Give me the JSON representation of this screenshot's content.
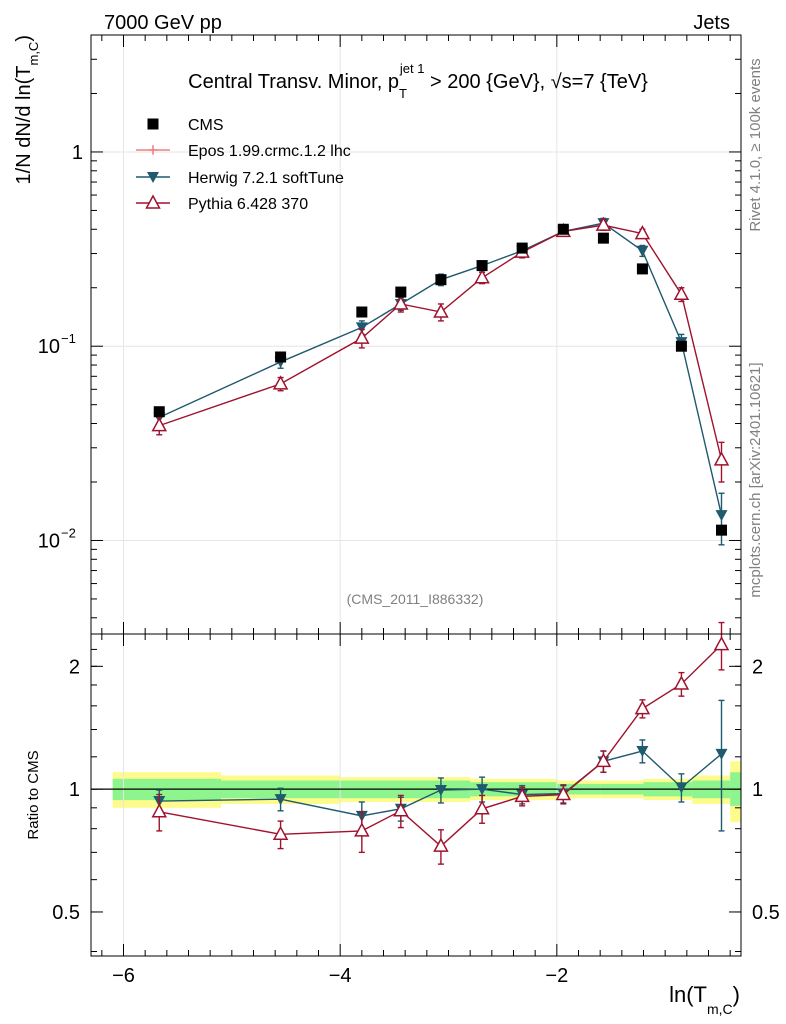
{
  "header": {
    "left": "7000 GeV pp",
    "right": "Jets"
  },
  "side_text": {
    "top": "Rivet 4.1.0, ≥ 100k events",
    "bottom": "mcplots.cern.ch [arXiv:2401.10621]"
  },
  "colors": {
    "cms": "#000000",
    "epos": "#f08080",
    "herwig": "#1f5a6e",
    "pythia": "#a0122d",
    "band_inner": "#8ef48e",
    "band_outer": "#fdfb8c"
  },
  "chart_data": [
    {
      "type": "line",
      "scale": "log",
      "title": {
        "main": "Central Transv. Minor, p",
        "sub": "T",
        "sup": "jet 1",
        "rest": " > 200 {GeV}, √s=7 {TeV}"
      },
      "ylabel": {
        "main": "1/N    dN/d ln(T",
        "sub": "m,C",
        "close": ")"
      },
      "watermark": "(CMS_2011_I886332)",
      "xlim": [
        -6.3,
        -0.3
      ],
      "ylim": [
        0.0033,
        4.0
      ],
      "y_ticks": [
        {
          "value": 1,
          "label": "1",
          "exp": ""
        },
        {
          "value": 0.1,
          "label": "10",
          "exp": "−1"
        },
        {
          "value": 0.01,
          "label": "10",
          "exp": "−2"
        }
      ],
      "legend": [
        {
          "key": "cms",
          "label": "CMS"
        },
        {
          "key": "epos",
          "label": "Epos 1.99.crmc.1.2 lhc"
        },
        {
          "key": "herwig",
          "label": "Herwig 7.2.1 softTune"
        },
        {
          "key": "pythia",
          "label": "Pythia 6.428 370"
        }
      ],
      "series": [
        {
          "name": "CMS",
          "key": "cms",
          "x": [
            -5.67,
            -4.55,
            -3.8,
            -3.44,
            -3.07,
            -2.69,
            -2.32,
            -1.94,
            -1.57,
            -1.21,
            -0.85,
            -0.48
          ],
          "values": [
            0.046,
            0.088,
            0.15,
            0.19,
            0.22,
            0.26,
            0.32,
            0.4,
            0.36,
            0.25,
            0.1,
            0.0113
          ]
        },
        {
          "name": "Herwig 7.2.1 softTune",
          "key": "herwig",
          "x": [
            -5.67,
            -4.55,
            -3.8,
            -3.44,
            -3.07,
            -2.69,
            -2.32,
            -1.94,
            -1.57,
            -1.21,
            -0.85,
            -0.48
          ],
          "values": [
            0.043,
            0.083,
            0.125,
            0.165,
            0.22,
            0.26,
            0.31,
            0.39,
            0.43,
            0.31,
            0.105,
            0.0135
          ],
          "err": [
            0.003,
            0.006,
            0.01,
            0.012,
            0.015,
            0.015,
            0.02,
            0.02,
            0.025,
            0.02,
            0.01,
            0.004
          ]
        },
        {
          "name": "Pythia 6.428 370",
          "key": "pythia",
          "x": [
            -5.67,
            -4.55,
            -3.8,
            -3.44,
            -3.07,
            -2.69,
            -2.32,
            -1.94,
            -1.57,
            -1.21,
            -0.85,
            -0.48
          ],
          "values": [
            0.039,
            0.064,
            0.11,
            0.165,
            0.15,
            0.225,
            0.305,
            0.39,
            0.42,
            0.38,
            0.185,
            0.026
          ],
          "err": [
            0.004,
            0.005,
            0.012,
            0.015,
            0.015,
            0.015,
            0.02,
            0.02,
            0.025,
            0.02,
            0.015,
            0.006
          ]
        }
      ]
    },
    {
      "type": "line",
      "ylabel": "Ratio to CMS",
      "xlabel": {
        "main": "ln(T",
        "sub": "m,C",
        "close": ")"
      },
      "xlim": [
        -6.3,
        -0.3
      ],
      "ylim": [
        0.39,
        2.4
      ],
      "x_ticks": [
        {
          "value": -6,
          "label": "−6"
        },
        {
          "value": -4,
          "label": "−4"
        },
        {
          "value": -2,
          "label": "−2"
        }
      ],
      "y_ticks": [
        {
          "value": 2,
          "label": "2"
        },
        {
          "value": 1,
          "label": "1"
        },
        {
          "value": 0.5,
          "label": "0.5"
        }
      ],
      "bands": {
        "edges": [
          -6.1,
          -5.1,
          -4.0,
          -2.8,
          -2.0,
          -1.6,
          -1.2,
          -0.75,
          -0.4,
          -0.3
        ],
        "inner_low": [
          0.94,
          0.95,
          0.95,
          0.96,
          0.97,
          0.97,
          0.96,
          0.95,
          0.91
        ],
        "inner_high": [
          1.06,
          1.05,
          1.05,
          1.04,
          1.03,
          1.03,
          1.04,
          1.05,
          1.1
        ],
        "outer_low": [
          0.9,
          0.92,
          0.93,
          0.94,
          0.95,
          0.95,
          0.94,
          0.92,
          0.83
        ],
        "outer_high": [
          1.1,
          1.08,
          1.07,
          1.06,
          1.05,
          1.05,
          1.06,
          1.08,
          1.17
        ]
      },
      "series": [
        {
          "name": "Herwig 7.2.1 softTune",
          "key": "herwig",
          "x": [
            -5.67,
            -4.55,
            -3.8,
            -3.44,
            -3.07,
            -2.69,
            -2.32,
            -1.94,
            -1.57,
            -1.21,
            -0.85,
            -0.48
          ],
          "values": [
            0.935,
            0.945,
            0.86,
            0.895,
            0.995,
            1.0,
            0.97,
            0.975,
            1.17,
            1.24,
            1.01,
            1.22
          ],
          "err": [
            0.06,
            0.06,
            0.07,
            0.06,
            0.07,
            0.07,
            0.05,
            0.05,
            0.07,
            0.08,
            0.08,
            0.43
          ]
        },
        {
          "name": "Pythia 6.428 370",
          "key": "pythia",
          "x": [
            -5.67,
            -4.55,
            -3.8,
            -3.44,
            -3.07,
            -2.69,
            -2.32,
            -1.94,
            -1.57,
            -1.21,
            -0.85,
            -0.48
          ],
          "values": [
            0.88,
            0.775,
            0.79,
            0.885,
            0.725,
            0.895,
            0.96,
            0.97,
            1.17,
            1.575,
            1.81,
            2.26
          ],
          "err": [
            0.09,
            0.06,
            0.09,
            0.08,
            0.07,
            0.07,
            0.05,
            0.05,
            0.07,
            0.08,
            0.12,
            0.3
          ]
        }
      ]
    }
  ]
}
